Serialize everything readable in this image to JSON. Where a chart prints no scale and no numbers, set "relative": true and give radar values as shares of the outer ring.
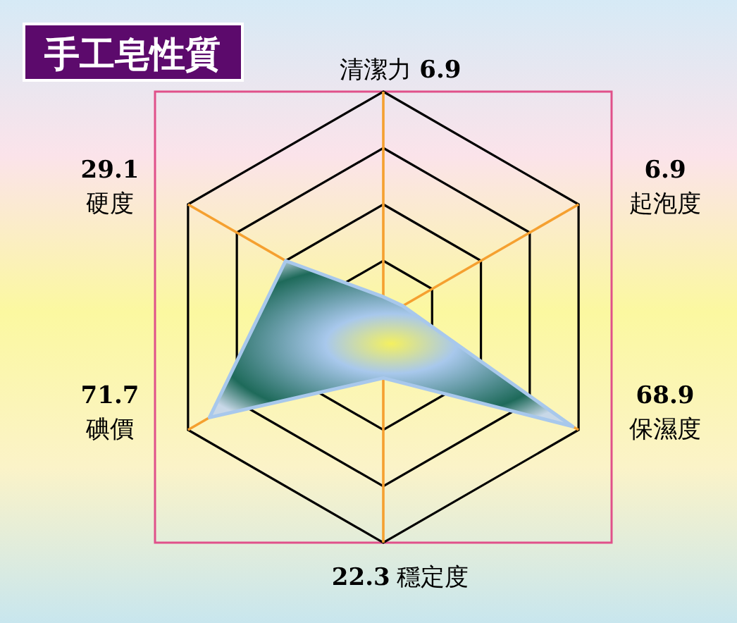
{
  "chart_data": {
    "type": "radar",
    "title": "手工皂性質",
    "categories": [
      "清潔力 6.9",
      "6.9\n起泡度",
      "68.9\n保濕度",
      "22.3 穩定度",
      "71.7\n碘價",
      "29.1\n硬度"
    ],
    "series": [
      {
        "color": "#a8c8ec",
        "values": [
          0.09,
          0.1,
          0.97,
          0.27,
          0.89,
          0.5
        ]
      }
    ],
    "relative": true,
    "grid": true
  }
}
